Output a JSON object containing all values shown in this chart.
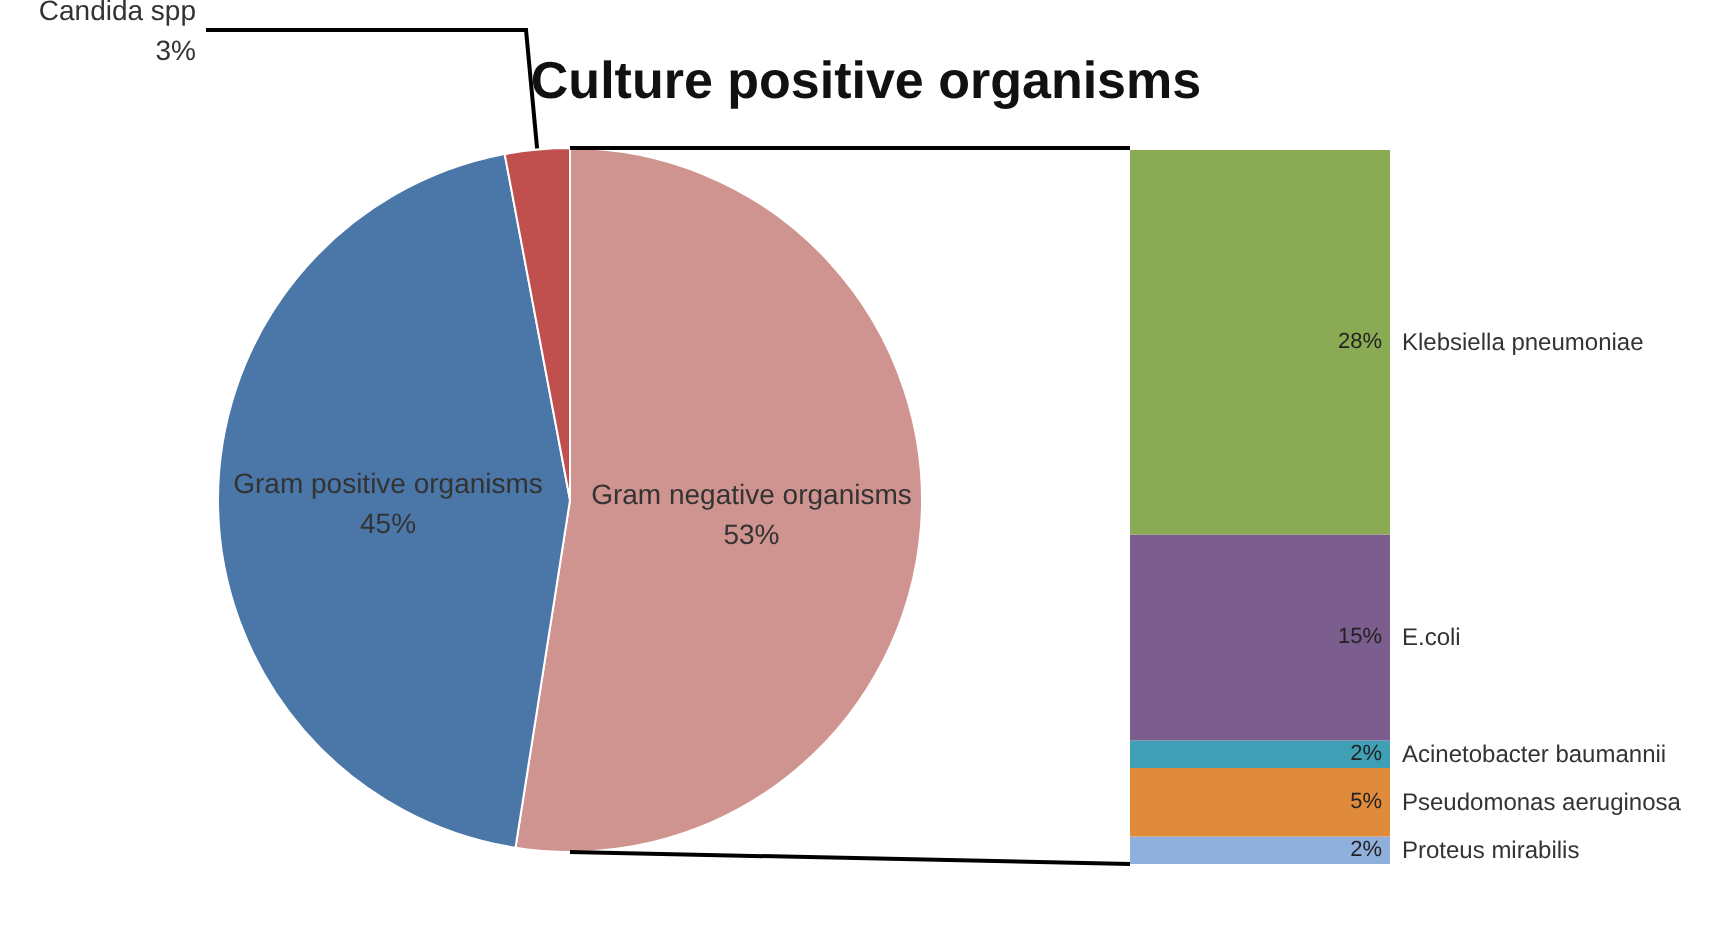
{
  "chart_data": [
    {
      "type": "pie",
      "title": "Culture positive organisms",
      "categories": [
        "Gram negative organisms",
        "Gram positive organisms",
        "Candida spp"
      ],
      "values": [
        53,
        45,
        3
      ],
      "colors": [
        "#d09490",
        "#4a76a8",
        "#c0504d"
      ],
      "value_labels": [
        "53%",
        "45%",
        "3%"
      ],
      "legend": false
    },
    {
      "type": "bar",
      "stacked": true,
      "categories": [
        null
      ],
      "legend": false,
      "series": [
        {
          "name": "Proteus mirabilis",
          "color": "#8fb0dc",
          "values": [
            2
          ],
          "value_labels": [
            "2%"
          ]
        },
        {
          "name": "Pseudomonas aeruginosa",
          "color": "#e08a3c",
          "values": [
            5
          ],
          "value_labels": [
            "5%"
          ]
        },
        {
          "name": "Acinetobacter baumannii",
          "color": "#3fa0b5",
          "values": [
            2
          ],
          "value_labels": [
            "2%"
          ]
        },
        {
          "name": "E.coli",
          "color": "#7b5e8e",
          "values": [
            15
          ],
          "value_labels": [
            "15%"
          ]
        },
        {
          "name": "Klebsiella pneumoniae",
          "color": "#8aaa54",
          "values": [
            28
          ],
          "value_labels": [
            "28%"
          ]
        }
      ]
    }
  ]
}
